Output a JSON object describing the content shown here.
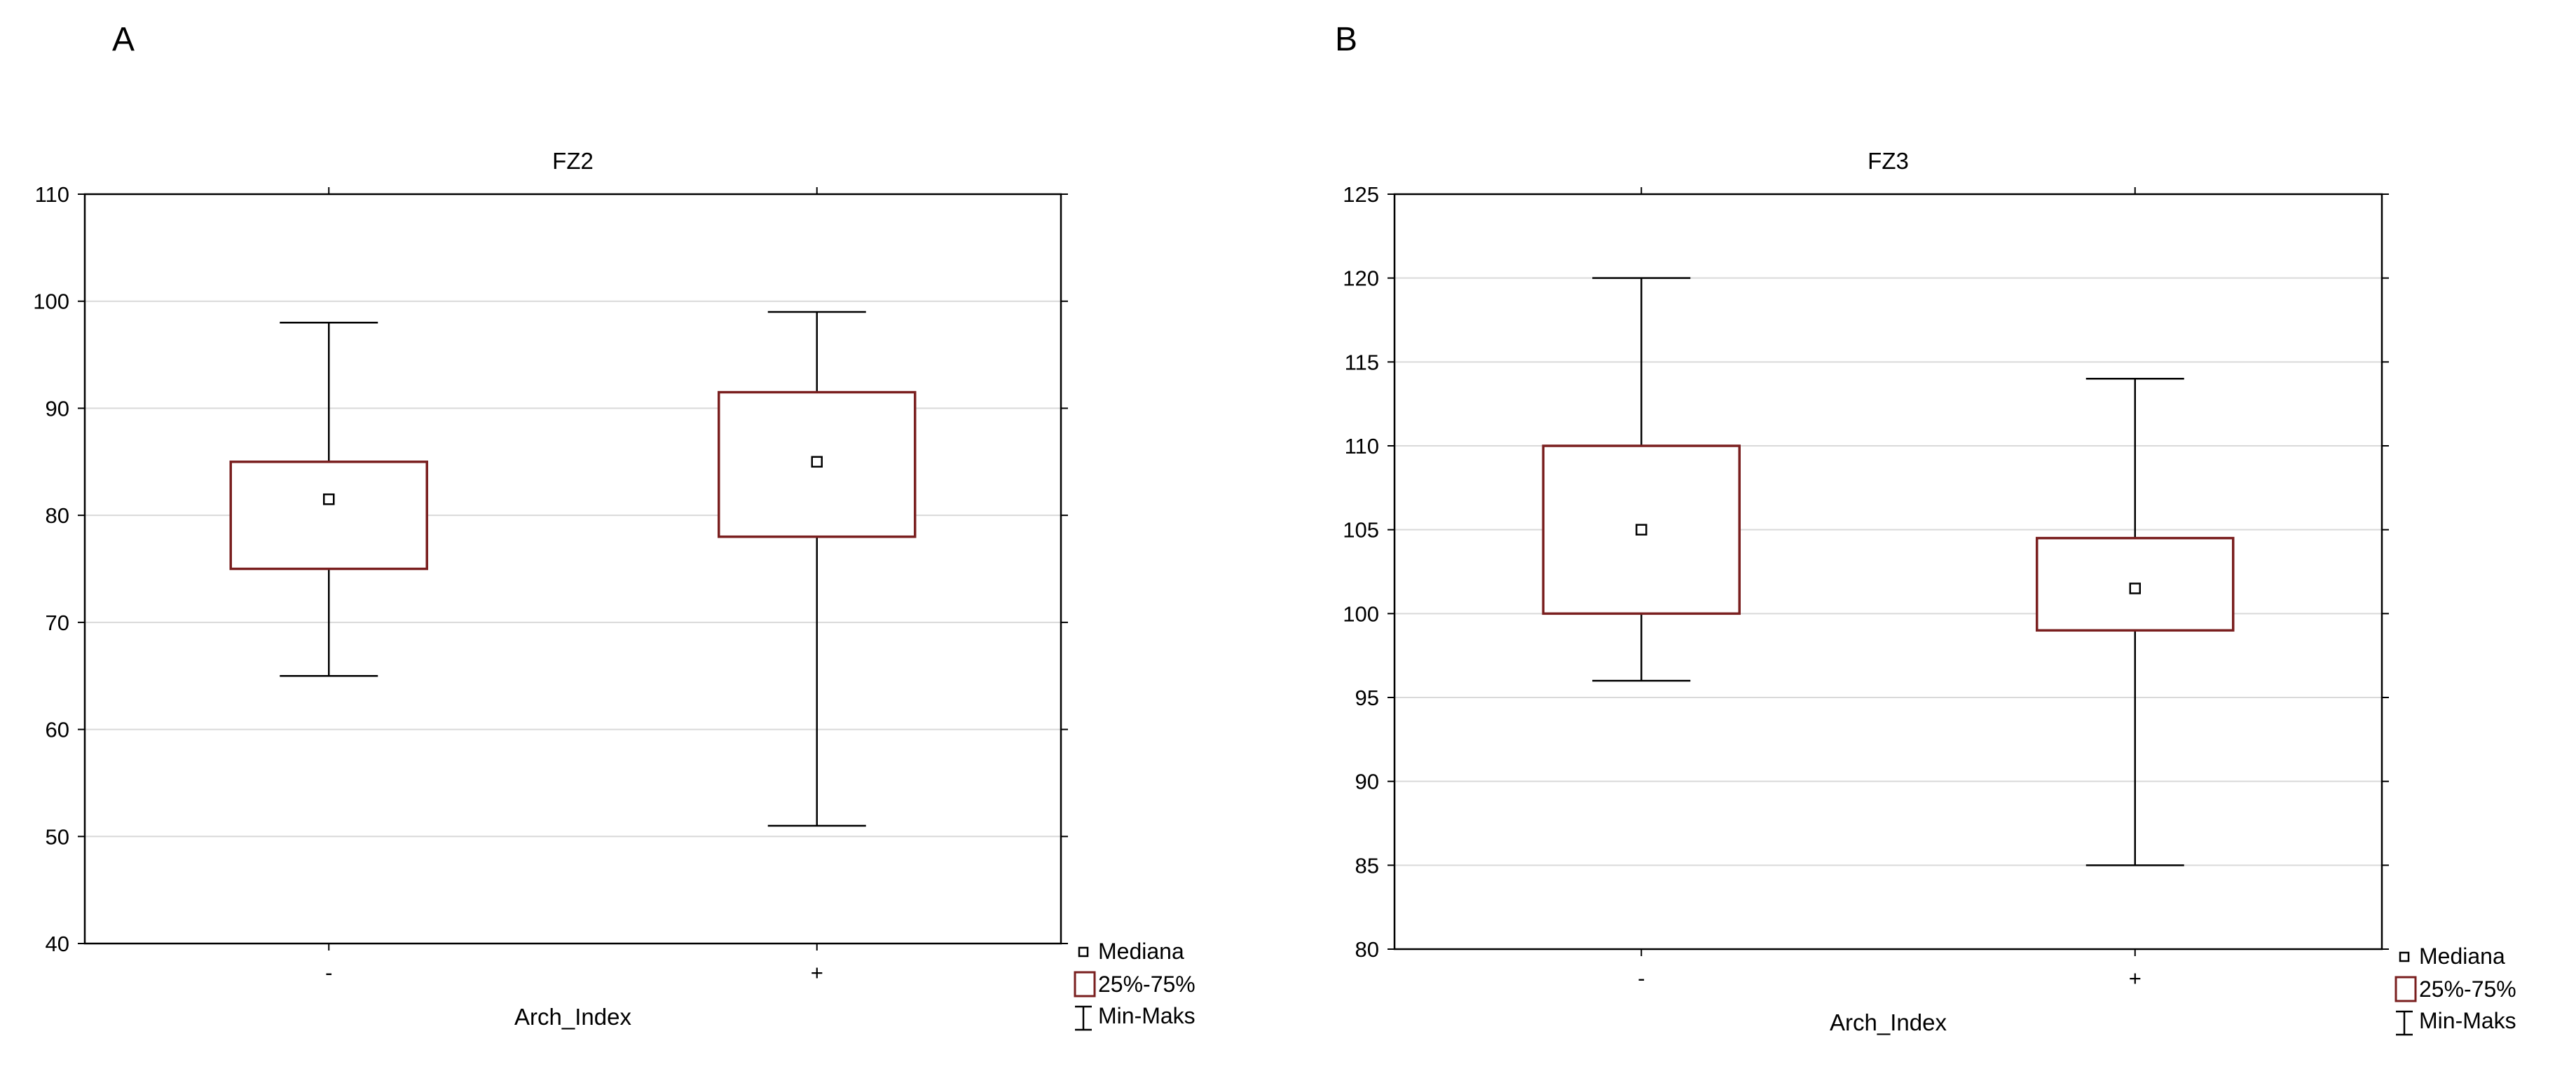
{
  "chart_data": [
    {
      "panel_label": "A",
      "type": "boxplot",
      "title": "FZ2",
      "xlabel": "Arch_Index",
      "ylabel": "",
      "ylim": [
        40,
        110
      ],
      "yticks": [
        40,
        50,
        60,
        70,
        80,
        90,
        100,
        110
      ],
      "categories": [
        "-",
        "+"
      ],
      "boxes": [
        {
          "category": "-",
          "min": 65,
          "q1": 75,
          "median": 81.5,
          "q3": 85,
          "max": 98
        },
        {
          "category": "+",
          "min": 51,
          "q1": 78,
          "median": 85,
          "q3": 91.5,
          "max": 99
        }
      ],
      "grid": true,
      "legend_position": "bottom-right",
      "legend": [
        "Mediana",
        "25%-75%",
        "Min-Maks"
      ]
    },
    {
      "panel_label": "B",
      "type": "boxplot",
      "title": "FZ3",
      "xlabel": "Arch_Index",
      "ylabel": "",
      "ylim": [
        80,
        125
      ],
      "yticks": [
        80,
        85,
        90,
        95,
        100,
        105,
        110,
        115,
        120,
        125
      ],
      "categories": [
        "-",
        "+"
      ],
      "boxes": [
        {
          "category": "-",
          "min": 96,
          "q1": 100,
          "median": 105,
          "q3": 110,
          "max": 120
        },
        {
          "category": "+",
          "min": 85,
          "q1": 99,
          "median": 101.5,
          "q3": 104.5,
          "max": 114
        }
      ],
      "grid": true,
      "legend_position": "bottom-right",
      "legend": [
        "Mediana",
        "25%-75%",
        "Min-Maks"
      ]
    }
  ],
  "colors": {
    "box_stroke": "#7a1f1f",
    "whisker": "#000000",
    "grid": "#d9d9d9",
    "frame": "#000000"
  }
}
